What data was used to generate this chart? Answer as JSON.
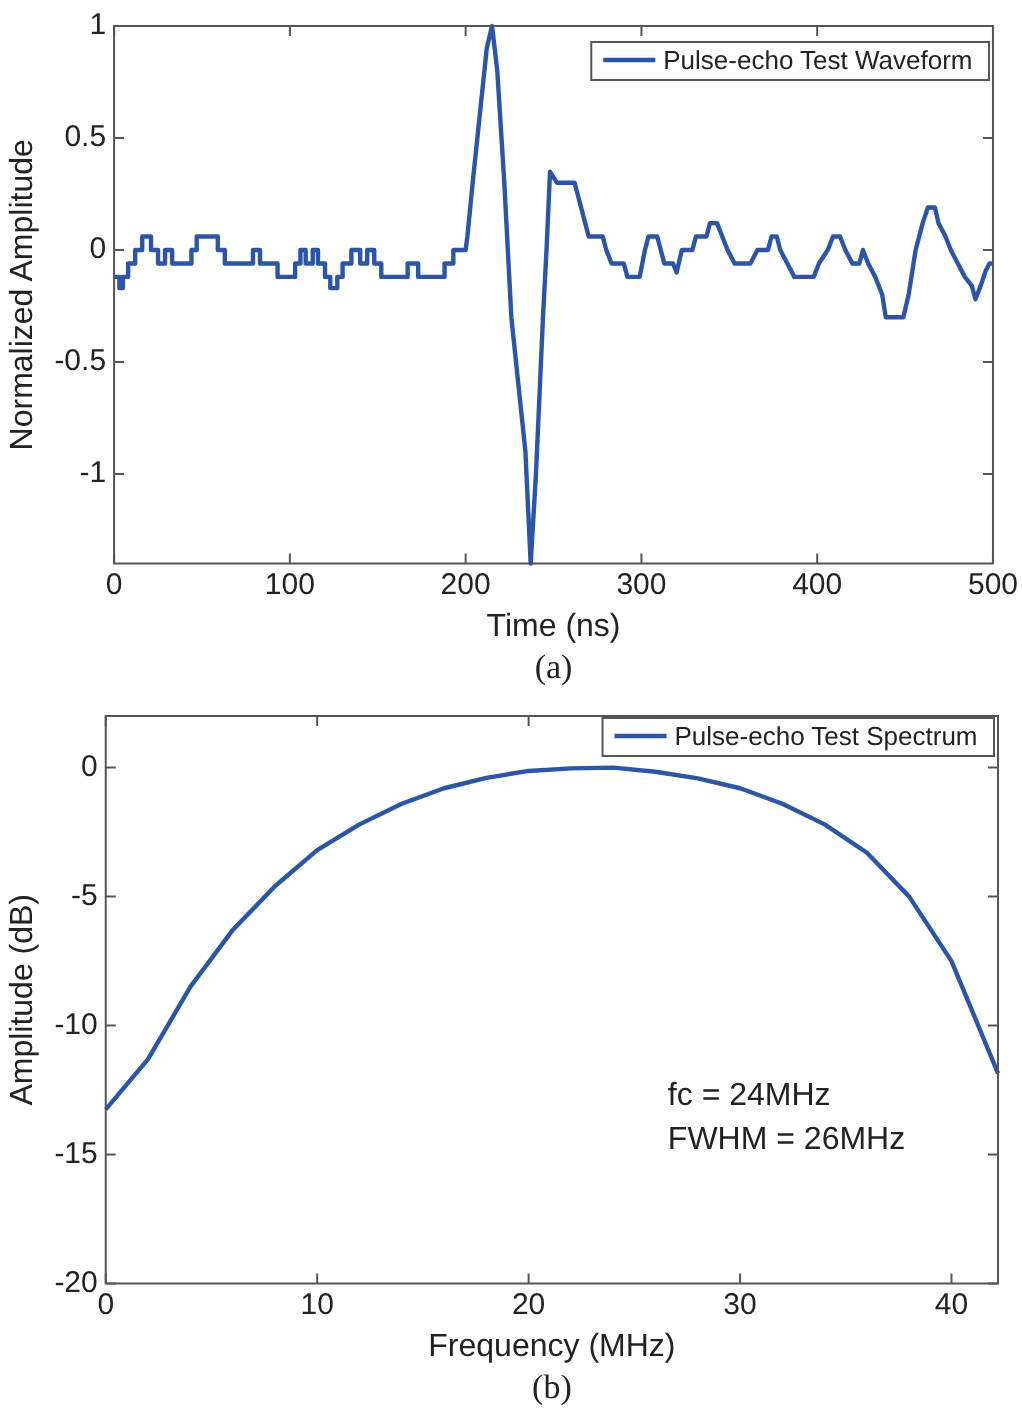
{
  "chart_data": [
    {
      "type": "line",
      "xlabel": "Time (ns)",
      "ylabel": "Normalized Amplitude",
      "xlim": [
        0,
        500
      ],
      "ylim": [
        -1.4,
        1
      ],
      "xticks": [
        0,
        100,
        200,
        300,
        400,
        500
      ],
      "yticks": [
        -1,
        -0.5,
        0,
        0.5,
        1
      ],
      "legend": "top right",
      "annotations": [
        "(a)"
      ],
      "series": [
        {
          "name": "Pulse-echo Test Waveform",
          "color": "#2b55a8",
          "x": [
            0,
            3,
            3,
            5,
            5,
            8,
            8,
            12,
            12,
            16,
            16,
            21,
            21,
            25,
            25,
            29,
            29,
            33,
            33,
            44,
            44,
            47,
            47,
            59,
            59,
            63,
            63,
            79,
            79,
            83,
            83,
            93,
            93,
            103,
            103,
            106,
            106,
            109,
            109,
            113,
            113,
            116,
            116,
            120,
            120,
            123,
            123,
            127,
            127,
            130,
            130,
            135,
            135,
            140,
            140,
            144,
            144,
            148,
            148,
            152,
            152,
            167,
            167,
            173,
            173,
            188,
            188,
            193,
            193,
            200,
            201,
            204,
            208,
            212,
            215,
            218,
            222,
            226,
            230,
            234,
            237,
            240,
            244,
            246,
            248,
            252,
            262,
            266,
            270,
            278,
            280,
            283,
            290,
            292,
            299,
            302,
            304,
            309,
            311,
            313,
            318,
            320,
            323,
            329,
            331,
            337,
            339,
            343,
            346,
            349,
            353,
            362,
            366,
            372,
            374,
            377,
            379,
            383,
            387,
            398,
            401,
            406,
            409,
            413,
            416,
            420,
            424,
            426,
            429,
            433,
            437,
            439,
            449,
            452,
            456,
            460,
            463,
            467,
            469,
            473,
            476,
            480,
            484,
            488,
            490,
            493,
            496,
            498,
            500
          ],
          "values": [
            -0.12,
            -0.12,
            -0.17,
            -0.17,
            -0.12,
            -0.12,
            -0.06,
            -0.06,
            0,
            0,
            0.06,
            0.06,
            0,
            0,
            -0.06,
            -0.06,
            0,
            0,
            -0.06,
            -0.06,
            0,
            0,
            0.06,
            0.06,
            0,
            0,
            -0.06,
            -0.06,
            0,
            0,
            -0.06,
            -0.06,
            -0.12,
            -0.12,
            -0.06,
            -0.06,
            0,
            0,
            -0.06,
            -0.06,
            0,
            0,
            -0.06,
            -0.06,
            -0.12,
            -0.12,
            -0.17,
            -0.17,
            -0.12,
            -0.12,
            -0.06,
            -0.06,
            0,
            0,
            -0.06,
            -0.06,
            0,
            0,
            -0.06,
            -0.06,
            -0.12,
            -0.12,
            -0.06,
            -0.06,
            -0.12,
            -0.12,
            -0.06,
            -0.06,
            0,
            0,
            0.06,
            0.3,
            0.6,
            0.9,
            1,
            0.8,
            0.3,
            -0.3,
            -0.6,
            -0.9,
            -1.4,
            -1,
            -0.3,
            0,
            0.35,
            0.3,
            0.3,
            0.18,
            0.06,
            0.06,
            0,
            -0.06,
            -0.06,
            -0.12,
            -0.12,
            0,
            0.06,
            0.06,
            0,
            -0.06,
            -0.06,
            -0.1,
            0,
            0,
            0.06,
            0.06,
            0.12,
            0.12,
            0.06,
            0,
            -0.06,
            -0.06,
            0,
            0,
            0.06,
            0.06,
            0,
            -0.06,
            -0.12,
            -0.12,
            -0.06,
            0,
            0.06,
            0.06,
            0,
            -0.06,
            -0.06,
            0,
            -0.06,
            -0.12,
            -0.2,
            -0.3,
            -0.3,
            -0.2,
            0,
            0.12,
            0.19,
            0.19,
            0.12,
            0.06,
            0,
            -0.06,
            -0.12,
            -0.16,
            -0.22,
            -0.16,
            -0.09,
            -0.06,
            -0.06
          ]
        }
      ]
    },
    {
      "type": "line",
      "xlabel": "Frequency (MHz)",
      "ylabel": "Amplitude (dB)",
      "xlim": [
        0,
        42.2
      ],
      "ylim": [
        -20,
        2
      ],
      "xticks": [
        0,
        10,
        20,
        30,
        40
      ],
      "yticks": [
        -20,
        -15,
        -10,
        -5,
        0
      ],
      "legend": "top right",
      "annotations": [
        "fc = 24MHz",
        "FWHM = 26MHz",
        "(b)"
      ],
      "series": [
        {
          "name": "Pulse-echo Test Spectrum",
          "color": "#2b55a8",
          "x": [
            0,
            2,
            4,
            6,
            8,
            10,
            12,
            14,
            16,
            18,
            20,
            22,
            24,
            26,
            28,
            30,
            32,
            34,
            36,
            38,
            40,
            42.2
          ],
          "values": [
            -13.25,
            -11.3,
            -8.5,
            -6.3,
            -4.6,
            -3.2,
            -2.2,
            -1.4,
            -0.8,
            -0.4,
            -0.13,
            -0.03,
            0,
            -0.16,
            -0.42,
            -0.8,
            -1.4,
            -2.2,
            -3.3,
            -5,
            -7.5,
            -11.85
          ]
        }
      ]
    }
  ]
}
